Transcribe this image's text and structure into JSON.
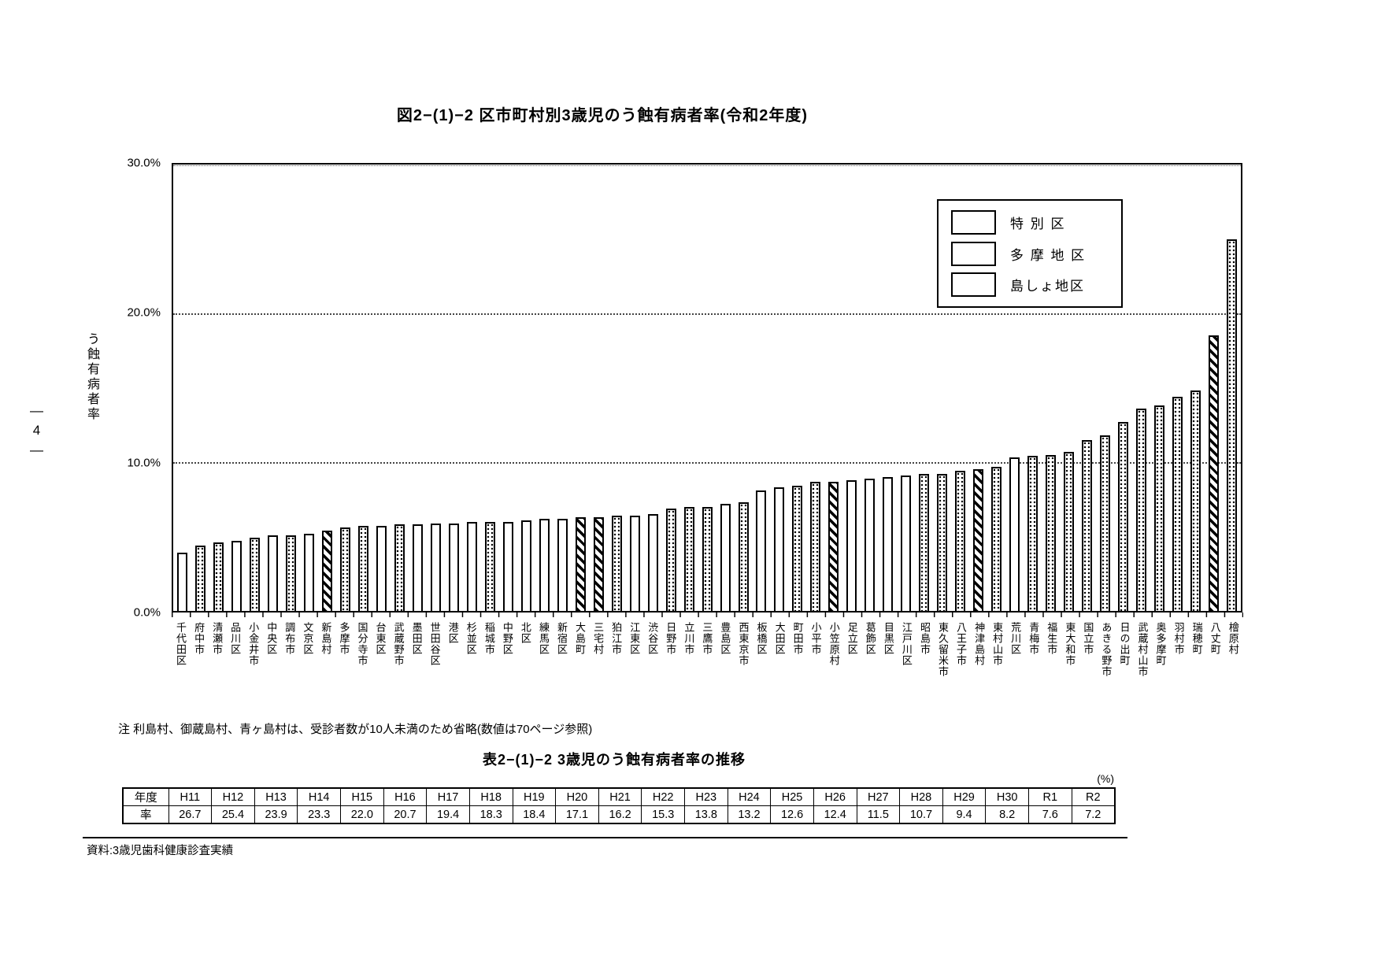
{
  "page": {
    "page_number": "―4―",
    "title": "図2−(1)−2 区市町村別3歳児のう蝕有病者率(令和2年度)",
    "note": "注 利島村、御蔵島村、青ヶ島村は、受診者数が10人未満のため省略(数値は70ページ参照)",
    "table_title": "表2−(1)−2 3歳児のう蝕有病者率の推移",
    "table_unit": "(%)",
    "source": "資料:3歳児歯科健康診査実績"
  },
  "chart_data": {
    "type": "bar",
    "title": "図2−(1)−2 区市町村別3歳児のう蝕有病者率(令和2年度)",
    "xlabel": "",
    "ylabel": "う蝕有病者率",
    "ylim": [
      0,
      30
    ],
    "yticks": [
      "30.0%",
      "20.0%",
      "10.0%",
      "0.0%"
    ],
    "grid": "horizontal dotted lines at 10% and 20%, solid frame",
    "legend_position": "upper right",
    "legend": [
      {
        "label": "特 別 区",
        "pattern": "special"
      },
      {
        "label": "多 摩 地 区",
        "pattern": "tama"
      },
      {
        "label": "島しょ地区",
        "pattern": "island"
      }
    ],
    "bars": [
      {
        "name": "千代田区",
        "value": 3.9,
        "group": "special"
      },
      {
        "name": "府中市",
        "value": 4.4,
        "group": "tama"
      },
      {
        "name": "清瀬市",
        "value": 4.6,
        "group": "tama"
      },
      {
        "name": "品川区",
        "value": 4.7,
        "group": "special"
      },
      {
        "name": "小金井市",
        "value": 4.9,
        "group": "tama"
      },
      {
        "name": "中央区",
        "value": 5.1,
        "group": "special"
      },
      {
        "name": "調布市",
        "value": 5.1,
        "group": "tama"
      },
      {
        "name": "文京区",
        "value": 5.2,
        "group": "special"
      },
      {
        "name": "新島村",
        "value": 5.4,
        "group": "island"
      },
      {
        "name": "多摩市",
        "value": 5.6,
        "group": "tama"
      },
      {
        "name": "国分寺市",
        "value": 5.7,
        "group": "tama"
      },
      {
        "name": "台東区",
        "value": 5.7,
        "group": "special"
      },
      {
        "name": "武蔵野市",
        "value": 5.8,
        "group": "tama"
      },
      {
        "name": "墨田区",
        "value": 5.8,
        "group": "special"
      },
      {
        "name": "世田谷区",
        "value": 5.9,
        "group": "special"
      },
      {
        "name": "港区",
        "value": 5.9,
        "group": "special"
      },
      {
        "name": "杉並区",
        "value": 6.0,
        "group": "special"
      },
      {
        "name": "稲城市",
        "value": 6.0,
        "group": "tama"
      },
      {
        "name": "中野区",
        "value": 6.0,
        "group": "special"
      },
      {
        "name": "北区",
        "value": 6.1,
        "group": "special"
      },
      {
        "name": "練馬区",
        "value": 6.2,
        "group": "special"
      },
      {
        "name": "新宿区",
        "value": 6.2,
        "group": "special"
      },
      {
        "name": "大島町",
        "value": 6.3,
        "group": "island"
      },
      {
        "name": "三宅村",
        "value": 6.3,
        "group": "island"
      },
      {
        "name": "狛江市",
        "value": 6.4,
        "group": "tama"
      },
      {
        "name": "江東区",
        "value": 6.4,
        "group": "special"
      },
      {
        "name": "渋谷区",
        "value": 6.5,
        "group": "special"
      },
      {
        "name": "日野市",
        "value": 6.9,
        "group": "tama"
      },
      {
        "name": "立川市",
        "value": 7.0,
        "group": "tama"
      },
      {
        "name": "三鷹市",
        "value": 7.0,
        "group": "tama"
      },
      {
        "name": "豊島区",
        "value": 7.2,
        "group": "special"
      },
      {
        "name": "西東京市",
        "value": 7.3,
        "group": "tama"
      },
      {
        "name": "板橋区",
        "value": 8.1,
        "group": "special"
      },
      {
        "name": "大田区",
        "value": 8.3,
        "group": "special"
      },
      {
        "name": "町田市",
        "value": 8.4,
        "group": "tama"
      },
      {
        "name": "小平市",
        "value": 8.7,
        "group": "tama"
      },
      {
        "name": "小笠原村",
        "value": 8.7,
        "group": "island"
      },
      {
        "name": "足立区",
        "value": 8.8,
        "group": "special"
      },
      {
        "name": "葛飾区",
        "value": 8.9,
        "group": "special"
      },
      {
        "name": "目黒区",
        "value": 9.0,
        "group": "special"
      },
      {
        "name": "江戸川区",
        "value": 9.1,
        "group": "special"
      },
      {
        "name": "昭島市",
        "value": 9.2,
        "group": "tama"
      },
      {
        "name": "東久留米市",
        "value": 9.2,
        "group": "tama"
      },
      {
        "name": "八王子市",
        "value": 9.4,
        "group": "tama"
      },
      {
        "name": "神津島村",
        "value": 9.5,
        "group": "island"
      },
      {
        "name": "東村山市",
        "value": 9.7,
        "group": "tama"
      },
      {
        "name": "荒川区",
        "value": 10.3,
        "group": "special"
      },
      {
        "name": "青梅市",
        "value": 10.4,
        "group": "tama"
      },
      {
        "name": "福生市",
        "value": 10.5,
        "group": "tama"
      },
      {
        "name": "東大和市",
        "value": 10.7,
        "group": "tama"
      },
      {
        "name": "国立市",
        "value": 11.5,
        "group": "tama"
      },
      {
        "name": "あきる野市",
        "value": 11.8,
        "group": "tama"
      },
      {
        "name": "日の出町",
        "value": 12.7,
        "group": "tama"
      },
      {
        "name": "武蔵村山市",
        "value": 13.6,
        "group": "tama"
      },
      {
        "name": "奥多摩町",
        "value": 13.8,
        "group": "tama"
      },
      {
        "name": "羽村市",
        "value": 14.4,
        "group": "tama"
      },
      {
        "name": "瑞穂町",
        "value": 14.8,
        "group": "tama"
      },
      {
        "name": "八丈町",
        "value": 18.5,
        "group": "island"
      },
      {
        "name": "檜原村",
        "value": 25.0,
        "group": "tama"
      }
    ]
  },
  "trend_table": {
    "row1_header": "年度",
    "row2_header": "率",
    "years": [
      "H11",
      "H12",
      "H13",
      "H14",
      "H15",
      "H16",
      "H17",
      "H18",
      "H19",
      "H20",
      "H21",
      "H22",
      "H23",
      "H24",
      "H25",
      "H26",
      "H27",
      "H28",
      "H29",
      "H30",
      "R1",
      "R2"
    ],
    "rates": [
      "26.7",
      "25.4",
      "23.9",
      "23.3",
      "22.0",
      "20.7",
      "19.4",
      "18.3",
      "18.4",
      "17.1",
      "16.2",
      "15.3",
      "13.8",
      "13.2",
      "12.6",
      "12.4",
      "11.5",
      "10.7",
      "9.4",
      "8.2",
      "7.6",
      "7.2"
    ]
  }
}
